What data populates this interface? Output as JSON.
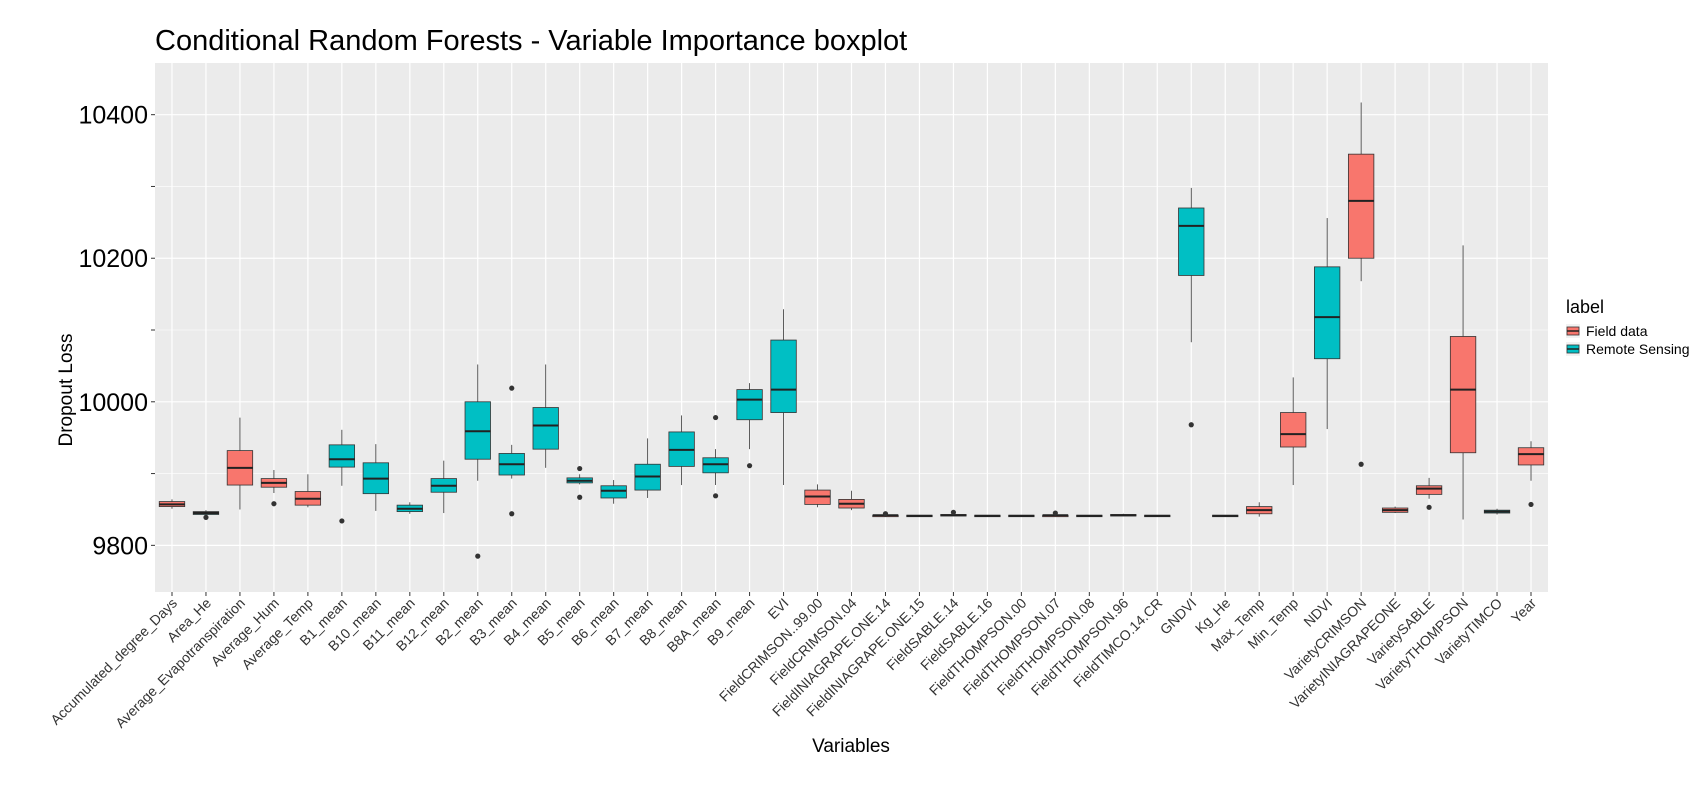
{
  "chart_data": {
    "type": "boxplot",
    "title": "Conditional Random Forests - Variable Importance boxplot",
    "xlabel": "Variables",
    "ylabel": "Dropout Loss",
    "ylim": [
      9735,
      10472
    ],
    "y_ticks": [
      9800,
      10000,
      10200,
      10400
    ],
    "grid": true,
    "legend": {
      "title": "label",
      "position": "right",
      "entries": [
        {
          "label": "Field data",
          "color": "#F8766D"
        },
        {
          "label": "Remote Sensing",
          "color": "#00BFC4"
        }
      ]
    },
    "colors": {
      "Field data": "#F8766D",
      "Remote Sensing": "#00BFC4",
      "panel": "#EBEBEB",
      "grid": "#FFFFFF"
    },
    "boxes": [
      {
        "name": "Accumulated_degree_Days",
        "group": "Field data",
        "whisker_low": 9851,
        "q1": 9854,
        "median": 9857,
        "q3": 9861,
        "whisker_high": 9864,
        "outliers": []
      },
      {
        "name": "Area_He",
        "group": "Remote Sensing",
        "whisker_low": 9842,
        "q1": 9843,
        "median": 9845,
        "q3": 9847,
        "whisker_high": 9849,
        "outliers": [
          9839
        ]
      },
      {
        "name": "Average_Evapotranspiration",
        "group": "Field data",
        "whisker_low": 9850,
        "q1": 9884,
        "median": 9908,
        "q3": 9932,
        "whisker_high": 9978,
        "outliers": []
      },
      {
        "name": "Average_Hum",
        "group": "Field data",
        "whisker_low": 9873,
        "q1": 9881,
        "median": 9887,
        "q3": 9893,
        "whisker_high": 9905,
        "outliers": [
          9858
        ]
      },
      {
        "name": "Average_Temp",
        "group": "Field data",
        "whisker_low": 9853,
        "q1": 9856,
        "median": 9865,
        "q3": 9875,
        "whisker_high": 9899,
        "outliers": []
      },
      {
        "name": "B1_mean",
        "group": "Remote Sensing",
        "whisker_low": 9883,
        "q1": 9909,
        "median": 9920,
        "q3": 9940,
        "whisker_high": 9961,
        "outliers": [
          9834
        ]
      },
      {
        "name": "B10_mean",
        "group": "Remote Sensing",
        "whisker_low": 9848,
        "q1": 9872,
        "median": 9893,
        "q3": 9915,
        "whisker_high": 9941,
        "outliers": []
      },
      {
        "name": "B11_mean",
        "group": "Remote Sensing",
        "whisker_low": 9844,
        "q1": 9847,
        "median": 9851,
        "q3": 9856,
        "whisker_high": 9860,
        "outliers": []
      },
      {
        "name": "B12_mean",
        "group": "Remote Sensing",
        "whisker_low": 9845,
        "q1": 9874,
        "median": 9883,
        "q3": 9893,
        "whisker_high": 9918,
        "outliers": []
      },
      {
        "name": "B2_mean",
        "group": "Remote Sensing",
        "whisker_low": 9890,
        "q1": 9920,
        "median": 9959,
        "q3": 10000,
        "whisker_high": 10052,
        "outliers": [
          9785
        ]
      },
      {
        "name": "B3_mean",
        "group": "Remote Sensing",
        "whisker_low": 9893,
        "q1": 9898,
        "median": 9913,
        "q3": 9928,
        "whisker_high": 9940,
        "outliers": [
          10019,
          9844
        ]
      },
      {
        "name": "B4_mean",
        "group": "Remote Sensing",
        "whisker_low": 9908,
        "q1": 9934,
        "median": 9967,
        "q3": 9992,
        "whisker_high": 10052,
        "outliers": []
      },
      {
        "name": "B5_mean",
        "group": "Remote Sensing",
        "whisker_low": 9885,
        "q1": 9887,
        "median": 9890,
        "q3": 9894,
        "whisker_high": 9899,
        "outliers": [
          9907,
          9867
        ]
      },
      {
        "name": "B6_mean",
        "group": "Remote Sensing",
        "whisker_low": 9858,
        "q1": 9866,
        "median": 9876,
        "q3": 9883,
        "whisker_high": 9891,
        "outliers": []
      },
      {
        "name": "B7_mean",
        "group": "Remote Sensing",
        "whisker_low": 9866,
        "q1": 9877,
        "median": 9896,
        "q3": 9913,
        "whisker_high": 9949,
        "outliers": []
      },
      {
        "name": "B8_mean",
        "group": "Remote Sensing",
        "whisker_low": 9884,
        "q1": 9910,
        "median": 9933,
        "q3": 9958,
        "whisker_high": 9981,
        "outliers": []
      },
      {
        "name": "B8A_mean",
        "group": "Remote Sensing",
        "whisker_low": 9884,
        "q1": 9901,
        "median": 9913,
        "q3": 9922,
        "whisker_high": 9934,
        "outliers": [
          9978,
          9869
        ]
      },
      {
        "name": "B9_mean",
        "group": "Remote Sensing",
        "whisker_low": 9934,
        "q1": 9975,
        "median": 10003,
        "q3": 10017,
        "whisker_high": 10026,
        "outliers": [
          9911
        ]
      },
      {
        "name": "EVI",
        "group": "Remote Sensing",
        "whisker_low": 9884,
        "q1": 9985,
        "median": 10017,
        "q3": 10086,
        "whisker_high": 10129,
        "outliers": []
      },
      {
        "name": "FieldCRIMSON..99.00",
        "group": "Field data",
        "whisker_low": 9853,
        "q1": 9857,
        "median": 9868,
        "q3": 9877,
        "whisker_high": 9885,
        "outliers": []
      },
      {
        "name": "FieldCRIMSON.04",
        "group": "Field data",
        "whisker_low": 9849,
        "q1": 9852,
        "median": 9858,
        "q3": 9864,
        "whisker_high": 9876,
        "outliers": []
      },
      {
        "name": "FieldINIAGRAPE.ONE.14",
        "group": "Field data",
        "whisker_low": 9841,
        "q1": 9841,
        "median": 9842,
        "q3": 9842,
        "whisker_high": 9843,
        "outliers": [
          9844
        ]
      },
      {
        "name": "FieldINIAGRAPE.ONE.15",
        "group": "Field data",
        "whisker_low": 9841,
        "q1": 9841,
        "median": 9841,
        "q3": 9842,
        "whisker_high": 9842,
        "outliers": []
      },
      {
        "name": "FieldSABLE.14",
        "group": "Field data",
        "whisker_low": 9841,
        "q1": 9842,
        "median": 9842,
        "q3": 9843,
        "whisker_high": 9844,
        "outliers": [
          9846
        ]
      },
      {
        "name": "FieldSABLE.16",
        "group": "Field data",
        "whisker_low": 9841,
        "q1": 9841,
        "median": 9841,
        "q3": 9842,
        "whisker_high": 9842,
        "outliers": []
      },
      {
        "name": "FieldTHOMPSON.00",
        "group": "Field data",
        "whisker_low": 9841,
        "q1": 9841,
        "median": 9841,
        "q3": 9842,
        "whisker_high": 9842,
        "outliers": []
      },
      {
        "name": "FieldTHOMPSON.07",
        "group": "Field data",
        "whisker_low": 9841,
        "q1": 9841,
        "median": 9842,
        "q3": 9842,
        "whisker_high": 9843,
        "outliers": [
          9845
        ]
      },
      {
        "name": "FieldTHOMPSON.08",
        "group": "Field data",
        "whisker_low": 9841,
        "q1": 9841,
        "median": 9841,
        "q3": 9842,
        "whisker_high": 9842,
        "outliers": []
      },
      {
        "name": "FieldTHOMPSON.96",
        "group": "Field data",
        "whisker_low": 9841,
        "q1": 9842,
        "median": 9842,
        "q3": 9843,
        "whisker_high": 9844,
        "outliers": []
      },
      {
        "name": "FieldTIMCO.14.CR",
        "group": "Field data",
        "whisker_low": 9841,
        "q1": 9841,
        "median": 9841,
        "q3": 9842,
        "whisker_high": 9842,
        "outliers": []
      },
      {
        "name": "GNDVI",
        "group": "Remote Sensing",
        "whisker_low": 10083,
        "q1": 10176,
        "median": 10245,
        "q3": 10270,
        "whisker_high": 10298,
        "outliers": [
          9968
        ]
      },
      {
        "name": "Kg_He",
        "group": "Remote Sensing",
        "whisker_low": 9841,
        "q1": 9841,
        "median": 9841,
        "q3": 9842,
        "whisker_high": 9842,
        "outliers": []
      },
      {
        "name": "Max_Temp",
        "group": "Field data",
        "whisker_low": 9840,
        "q1": 9844,
        "median": 9849,
        "q3": 9854,
        "whisker_high": 9860,
        "outliers": []
      },
      {
        "name": "Min_Temp",
        "group": "Field data",
        "whisker_low": 9884,
        "q1": 9937,
        "median": 9955,
        "q3": 9985,
        "whisker_high": 10034,
        "outliers": []
      },
      {
        "name": "NDVI",
        "group": "Remote Sensing",
        "whisker_low": 9962,
        "q1": 10060,
        "median": 10118,
        "q3": 10188,
        "whisker_high": 10256,
        "outliers": []
      },
      {
        "name": "VarietyCRIMSON",
        "group": "Field data",
        "whisker_low": 10168,
        "q1": 10200,
        "median": 10280,
        "q3": 10345,
        "whisker_high": 10417,
        "outliers": [
          9913
        ]
      },
      {
        "name": "VarietyINIAGRAPEONE",
        "group": "Field data",
        "whisker_low": 9845,
        "q1": 9846,
        "median": 9849,
        "q3": 9852,
        "whisker_high": 9854,
        "outliers": []
      },
      {
        "name": "VarietySABLE",
        "group": "Field data",
        "whisker_low": 9865,
        "q1": 9871,
        "median": 9879,
        "q3": 9883,
        "whisker_high": 9894,
        "outliers": [
          9853
        ]
      },
      {
        "name": "VarietyTHOMPSON",
        "group": "Field data",
        "whisker_low": 9836,
        "q1": 9929,
        "median": 10017,
        "q3": 10091,
        "whisker_high": 10218,
        "outliers": []
      },
      {
        "name": "VarietyTIMCO",
        "group": "Remote Sensing",
        "whisker_low": 9843,
        "q1": 9845,
        "median": 9847,
        "q3": 9849,
        "whisker_high": 9851,
        "outliers": []
      },
      {
        "name": "Year",
        "group": "Field data",
        "whisker_low": 9890,
        "q1": 9912,
        "median": 9927,
        "q3": 9936,
        "whisker_high": 9945,
        "outliers": [
          9857
        ]
      }
    ]
  }
}
